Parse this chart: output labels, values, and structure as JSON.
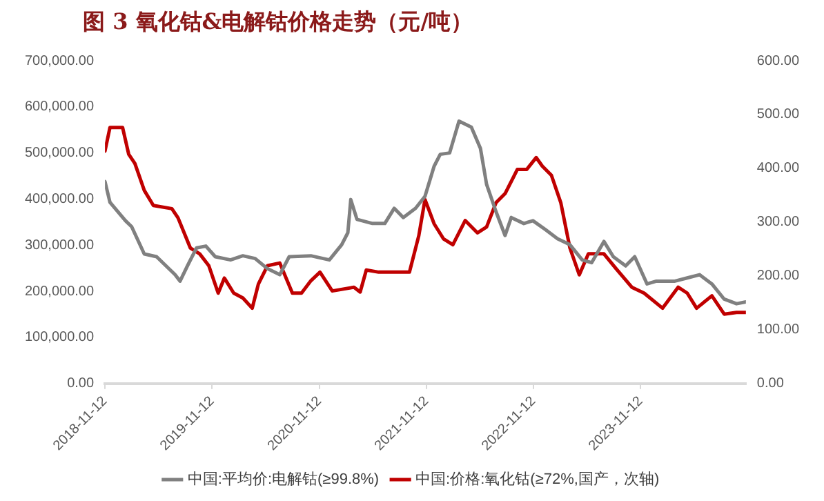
{
  "chart_data": {
    "type": "line",
    "title": "图 3 氧化钴&电解钴价格走势（元/吨）",
    "xlim": [
      "2018-11-12",
      "2024-11-05"
    ],
    "xticks": [
      "2018-11-12",
      "2019-11-12",
      "2020-11-12",
      "2021-11-12",
      "2022-11-12",
      "2023-11-12"
    ],
    "ylim": [
      0,
      700000
    ],
    "yticks": [
      {
        "value": 0,
        "label": "0.00"
      },
      {
        "value": 100000,
        "label": "100,000.00"
      },
      {
        "value": 200000,
        "label": "200,000.00"
      },
      {
        "value": 300000,
        "label": "300,000.00"
      },
      {
        "value": 400000,
        "label": "400,000.00"
      },
      {
        "value": 500000,
        "label": "500,000.00"
      },
      {
        "value": 600000,
        "label": "600,000.00"
      },
      {
        "value": 700000,
        "label": "700,000.00"
      }
    ],
    "y2lim": [
      0,
      600
    ],
    "y2ticks": [
      {
        "value": 0,
        "label": "0.00"
      },
      {
        "value": 100,
        "label": "100.00"
      },
      {
        "value": 200,
        "label": "200.00"
      },
      {
        "value": 300,
        "label": "300.00"
      },
      {
        "value": 400,
        "label": "400.00"
      },
      {
        "value": 500,
        "label": "500.00"
      },
      {
        "value": 600,
        "label": "600.00"
      }
    ],
    "grid": false,
    "legend": "bottom",
    "marker": "none",
    "line_style": "solid",
    "series": [
      {
        "name": "中国:平均价:电解钴(≥99.8%)",
        "color": "#808080",
        "x": [
          "2018-11-12",
          "2018-11-29",
          "2019-01-21",
          "2019-02-11",
          "2019-03-26",
          "2019-05-07",
          "2019-07-09",
          "2019-07-26",
          "2019-08-20",
          "2019-09-20",
          "2019-10-22",
          "2019-11-23",
          "2020-01-14",
          "2020-02-25",
          "2020-04-07",
          "2020-05-19",
          "2020-06-30",
          "2020-08-01",
          "2020-10-14",
          "2020-12-16",
          "2021-01-27",
          "2021-02-17",
          "2021-02-27",
          "2021-03-20",
          "2021-05-12",
          "2021-06-23",
          "2021-07-25",
          "2021-08-25",
          "2021-10-06",
          "2021-11-07",
          "2021-12-08",
          "2021-12-29",
          "2022-01-30",
          "2022-03-03",
          "2022-04-14",
          "2022-05-15",
          "2022-06-05",
          "2022-07-07",
          "2022-08-07",
          "2022-08-28",
          "2022-10-10",
          "2022-11-10",
          "2022-12-22",
          "2023-02-02",
          "2023-03-16",
          "2023-04-27",
          "2023-05-29",
          "2023-07-10",
          "2023-08-11",
          "2023-09-22",
          "2023-10-23",
          "2023-12-04",
          "2024-01-05",
          "2024-03-08",
          "2024-04-19",
          "2024-05-31",
          "2024-07-12",
          "2024-08-23",
          "2024-10-04",
          "2024-11-05"
        ],
        "values": [
          438000,
          393000,
          353000,
          340000,
          281000,
          275000,
          236000,
          222000,
          255000,
          294000,
          298000,
          275000,
          268000,
          277000,
          271000,
          249000,
          236000,
          275000,
          277000,
          268000,
          301000,
          327000,
          399000,
          356000,
          347000,
          347000,
          380000,
          360000,
          380000,
          406000,
          471000,
          497000,
          500000,
          569000,
          556000,
          510000,
          432000,
          373000,
          321000,
          360000,
          347000,
          353000,
          334000,
          314000,
          301000,
          268000,
          262000,
          308000,
          275000,
          255000,
          275000,
          216000,
          222000,
          222000,
          229000,
          236000,
          216000,
          183000,
          173000,
          177000
        ]
      },
      {
        "name": "中国:价格:氧化钴(≥72%,国产，次轴)",
        "color": "#c00000",
        "axis": "y2",
        "x": [
          "2018-11-12",
          "2018-11-29",
          "2019-01-11",
          "2019-02-01",
          "2019-02-22",
          "2019-03-26",
          "2019-04-26",
          "2019-06-28",
          "2019-07-19",
          "2019-08-30",
          "2019-10-01",
          "2019-11-01",
          "2019-12-03",
          "2019-12-24",
          "2020-01-25",
          "2020-02-25",
          "2020-03-28",
          "2020-04-18",
          "2020-05-19",
          "2020-06-30",
          "2020-08-12",
          "2020-09-12",
          "2020-10-14",
          "2020-11-14",
          "2020-12-26",
          "2021-03-10",
          "2021-03-31",
          "2021-04-21",
          "2021-06-02",
          "2021-09-15",
          "2021-10-17",
          "2021-11-07",
          "2021-12-08",
          "2022-01-09",
          "2022-02-10",
          "2022-03-24",
          "2022-05-05",
          "2022-06-05",
          "2022-07-07",
          "2022-08-07",
          "2022-09-18",
          "2022-10-20",
          "2022-11-21",
          "2022-12-12",
          "2023-01-12",
          "2023-02-13",
          "2023-03-16",
          "2023-04-17",
          "2023-05-18",
          "2023-07-10",
          "2023-08-21",
          "2023-10-13",
          "2023-11-24",
          "2024-01-26",
          "2024-03-19",
          "2024-04-19",
          "2024-05-21",
          "2024-07-12",
          "2024-08-23",
          "2024-10-04",
          "2024-11-05"
        ],
        "values": [
          432,
          476,
          476,
          426,
          409,
          359,
          331,
          325,
          308,
          252,
          241,
          219,
          168,
          196,
          168,
          159,
          140,
          185,
          219,
          224,
          168,
          168,
          191,
          207,
          172,
          179,
          170,
          211,
          207,
          207,
          275,
          342,
          297,
          269,
          258,
          303,
          280,
          291,
          336,
          353,
          398,
          398,
          420,
          404,
          387,
          336,
          252,
          202,
          241,
          241,
          213,
          179,
          168,
          140,
          179,
          168,
          140,
          163,
          129,
          132,
          132
        ]
      }
    ]
  }
}
